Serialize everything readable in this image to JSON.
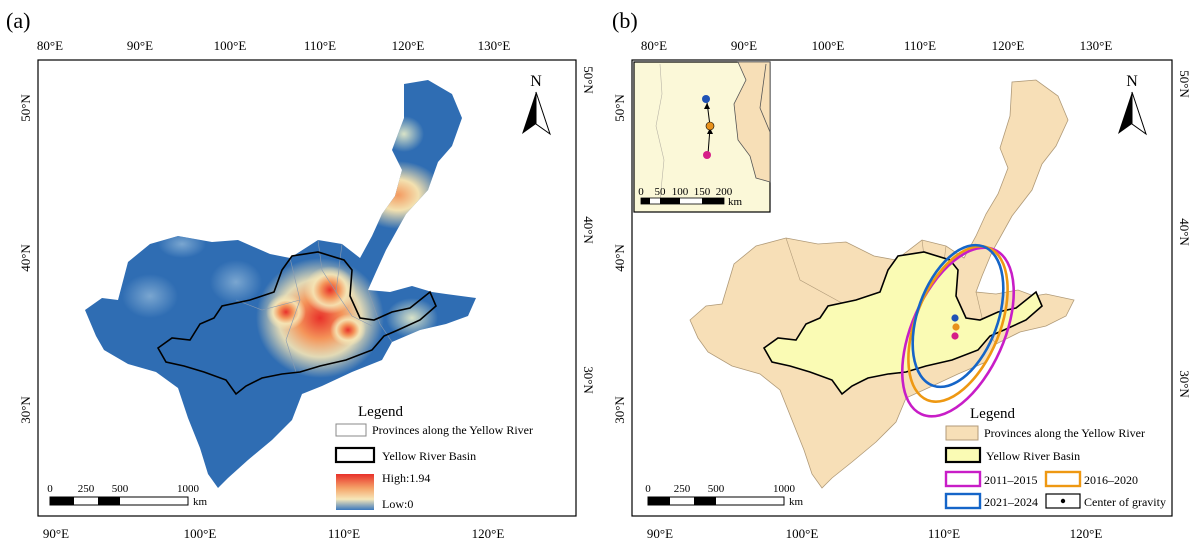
{
  "panels": [
    {
      "label": "(a)",
      "top_ticks": [
        "80°E",
        "90°E",
        "100°E",
        "110°E",
        "120°E",
        "130°E"
      ],
      "bottom_ticks": [
        "90°E",
        "100°E",
        "110°E",
        "120°E"
      ],
      "left_ticks": [
        "50°N",
        "40°N",
        "30°N"
      ],
      "right_ticks": [
        "50°N",
        "40°N",
        "30°N"
      ],
      "north": "N",
      "legend": {
        "title": "Legend",
        "provinces": "Provinces along the Yellow River",
        "basin": "Yellow River Basin",
        "high": "High:1.94",
        "low": "Low:0"
      },
      "scale": {
        "labels": [
          "0",
          "250",
          "500",
          "1000"
        ],
        "unit": "km"
      }
    },
    {
      "label": "(b)",
      "top_ticks": [
        "80°E",
        "90°E",
        "100°E",
        "110°E",
        "120°E",
        "130°E"
      ],
      "inset_top_ticks": [
        "80°E",
        "90°E"
      ],
      "bottom_ticks": [
        "90°E",
        "100°E",
        "110°E",
        "120°E"
      ],
      "left_ticks": [
        "50°N",
        "40°N",
        "30°N"
      ],
      "right_ticks": [
        "50°N",
        "40°N",
        "30°N"
      ],
      "north": "N",
      "inset_scale": {
        "labels": [
          "0",
          "50",
          "100",
          "150",
          "200"
        ],
        "unit": "km"
      },
      "legend": {
        "title": "Legend",
        "provinces": "Provinces along the Yellow River",
        "basin": "Yellow River Basin",
        "p2011": "2011–2015",
        "p2016": "2016–2020",
        "p2021": "2021–2024",
        "gravity": "Center of gravity"
      },
      "scale": {
        "labels": [
          "0",
          "250",
          "500",
          "1000"
        ],
        "unit": "km"
      }
    }
  ],
  "colors": {
    "density_low": "#2f6db3",
    "density_high": "#e8312a",
    "province_fill": "#f7dfb7",
    "basin_fill": "#fafbb4",
    "ellipse_2011": "#c81dc7",
    "ellipse_2016": "#ee9812",
    "ellipse_2021": "#1565c8",
    "gravity_2011": "#d61f88",
    "gravity_2016": "#e8921c",
    "gravity_2021": "#1f52b5"
  }
}
